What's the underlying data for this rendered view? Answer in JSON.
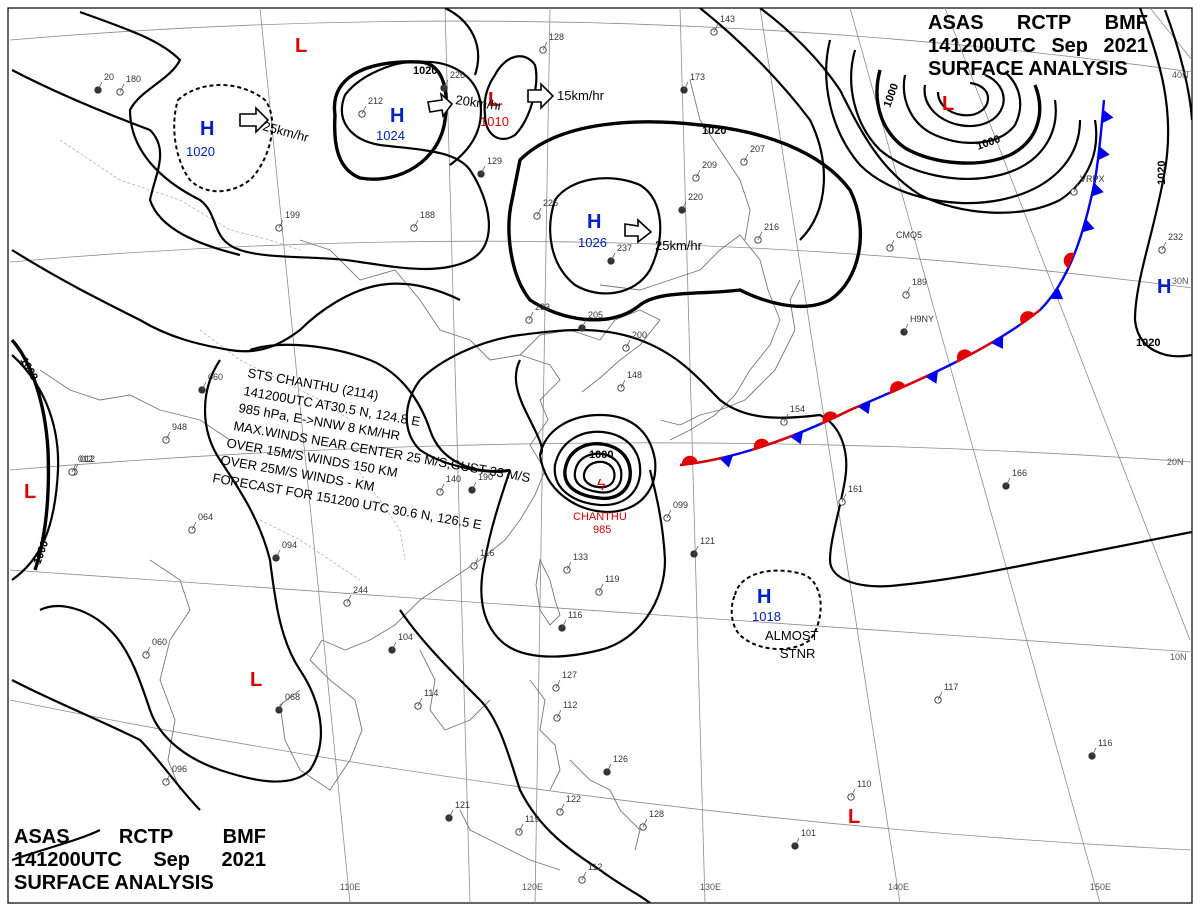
{
  "header": {
    "line1": [
      "ASAS",
      "RCTP",
      "BMF"
    ],
    "line2": [
      "141200UTC",
      "Sep",
      "2021"
    ],
    "line3": "SURFACE ANALYSIS"
  },
  "lat_labels": [
    "40N",
    "30N",
    "20N",
    "10N"
  ],
  "lon_labels": [
    "110E",
    "120E",
    "130E",
    "140E",
    "150E"
  ],
  "isobar_labels": [
    "1020",
    "1020",
    "1000",
    "1000",
    "1000",
    "1020",
    "1000",
    "1020"
  ],
  "pressure_systems": [
    {
      "type": "H",
      "value": "1020"
    },
    {
      "type": "H",
      "value": "1024"
    },
    {
      "type": "L",
      "value": "1010"
    },
    {
      "type": "H",
      "value": "1026"
    },
    {
      "type": "H",
      "value": "1018"
    },
    {
      "type": "L",
      "value": ""
    },
    {
      "type": "L",
      "value": ""
    },
    {
      "type": "L",
      "value": ""
    },
    {
      "type": "L",
      "value": ""
    },
    {
      "type": "L",
      "value": ""
    },
    {
      "type": "H",
      "value": ""
    }
  ],
  "motions": [
    "25km/hr",
    "20km/hr",
    "15km/hr",
    "25km/hr"
  ],
  "typhoon": {
    "name": "CHANTHU",
    "pressure": "985",
    "lines": [
      "STS  CHANTHU (2114)",
      "141200UTC  AT30.5 N, 124.8 E",
      "985 hPa, E->NNW  8 KM/HR",
      "MAX.WINDS NEAR CENTER 25 M/S,GUST  33 M/S",
      "OVER 15M/S WINDS  150 KM",
      "OVER 25M/S WINDS  - KM",
      "FORECAST FOR 151200 UTC 30.6 N, 126.5 E"
    ]
  },
  "almost_stnr": [
    "ALMOST",
    "STNR"
  ],
  "station_labels": [
    "20",
    "180",
    "212",
    "226",
    "128",
    "143",
    "173",
    "199",
    "188",
    "129",
    "209",
    "207",
    "220",
    "216",
    "233",
    "205",
    "200",
    "148",
    "190",
    "140",
    "154",
    "166",
    "232",
    "189",
    "060",
    "948",
    "012",
    "094",
    "116",
    "099",
    "121",
    "133",
    "119",
    "116",
    "064",
    "244",
    "104",
    "060",
    "114",
    "068",
    "127",
    "112",
    "126",
    "122",
    "128",
    "121",
    "119",
    "112",
    "101",
    "110",
    "117",
    "116",
    "096",
    "012",
    "237",
    "226",
    "161",
    "H9NY",
    "CMQ5",
    "VRPX"
  ]
}
